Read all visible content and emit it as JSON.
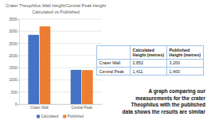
{
  "chart_data": {
    "type": "bar",
    "title": "Crater Theophilus Wall Height/Central Peak Height",
    "subtitle": "Calculated vs Published",
    "categories": [
      "Crater Wall",
      "Central Peak"
    ],
    "series": [
      {
        "name": "Calculated",
        "color": "#4472c4",
        "values": [
          2852,
          1411
        ]
      },
      {
        "name": "Published",
        "color": "#ed7d31",
        "values": [
          3200,
          1400
        ]
      }
    ],
    "ylim": [
      0,
      3500
    ],
    "yticks": [
      0,
      500,
      1000,
      1500,
      2000,
      2500,
      3000,
      3500
    ],
    "grid": true,
    "legend": "bottom"
  },
  "table": {
    "header": [
      "Calculated Height (metres)",
      "Published Height (metres)"
    ],
    "rows": [
      [
        "Crater Wall",
        "2,852",
        "3,200"
      ],
      [
        "Central Peak",
        "1,411",
        "1,400"
      ]
    ]
  },
  "caption": [
    "A graph comparing our",
    "measurements for the crater",
    "Theophilus with the published",
    "data shows the results are similar"
  ]
}
